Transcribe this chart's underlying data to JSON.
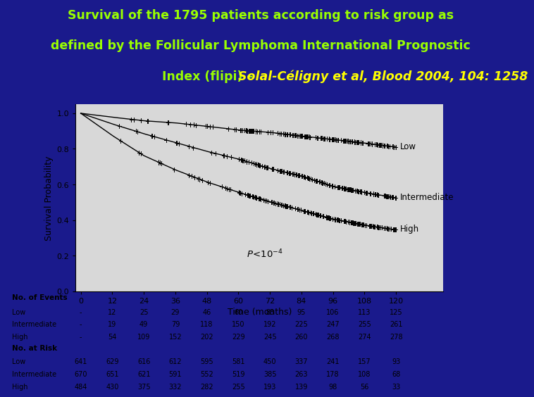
{
  "title_line1": "Survival of the 1795 patients according to risk group as",
  "title_line2": "defined by the Follicular Lymphoma International Prognostic",
  "title_line3_green": "Index (flipi) – ",
  "title_line3_yellow": "Solal-Céligny et al, Blood 2004, 104: 1258",
  "background_color": "#1a1a8c",
  "plot_bg": "#d8d8d8",
  "table_bg": "#ffffff",
  "title_color_main": "#99ff00",
  "title_color_italic": "#ffff00",
  "curve_color": "#000000",
  "xlabel": "Time (months)",
  "ylabel": "Survival Probability",
  "time_points": [
    0,
    12,
    24,
    36,
    48,
    60,
    72,
    84,
    96,
    108,
    120
  ],
  "low_survival": [
    1.0,
    0.978,
    0.958,
    0.946,
    0.927,
    0.906,
    0.893,
    0.872,
    0.853,
    0.833,
    0.81
  ],
  "intermediate_survival": [
    1.0,
    0.94,
    0.885,
    0.836,
    0.786,
    0.743,
    0.69,
    0.648,
    0.59,
    0.555,
    0.525
  ],
  "high_survival": [
    1.0,
    0.875,
    0.762,
    0.682,
    0.614,
    0.556,
    0.503,
    0.455,
    0.406,
    0.372,
    0.345
  ],
  "events_low": [
    "-",
    "12",
    "25",
    "29",
    "46",
    "60",
    "83",
    "95",
    "106",
    "113",
    "125"
  ],
  "events_inter": [
    "-",
    "19",
    "49",
    "79",
    "118",
    "150",
    "192",
    "225",
    "247",
    "255",
    "261"
  ],
  "events_high": [
    "-",
    "54",
    "109",
    "152",
    "202",
    "229",
    "245",
    "260",
    "268",
    "274",
    "278"
  ],
  "risk_low": [
    "641",
    "629",
    "616",
    "612",
    "595",
    "581",
    "450",
    "337",
    "241",
    "157",
    "93"
  ],
  "risk_inter": [
    "670",
    "651",
    "621",
    "591",
    "552",
    "519",
    "385",
    "263",
    "178",
    "108",
    "68"
  ],
  "risk_high": [
    "484",
    "430",
    "375",
    "332",
    "282",
    "255",
    "193",
    "139",
    "98",
    "56",
    "33"
  ],
  "label_low": "Low",
  "label_inter": "Intermediate",
  "label_high": "High"
}
